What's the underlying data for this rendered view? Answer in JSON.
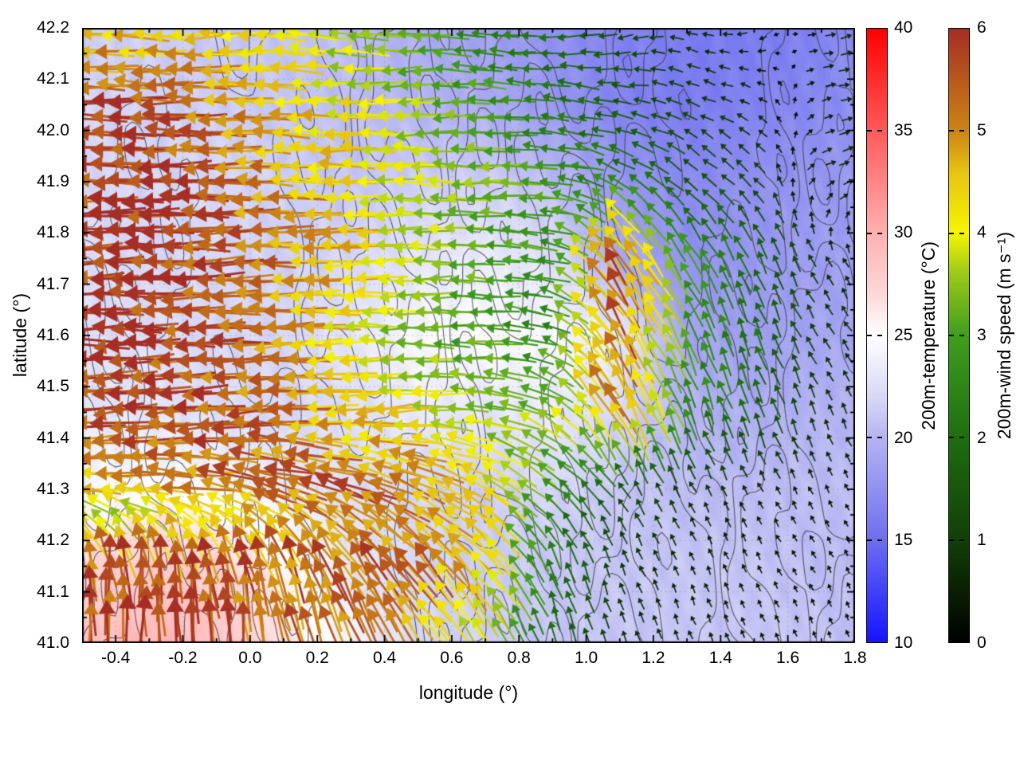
{
  "chart_data": {
    "type": "quiver_heatmap",
    "title": "",
    "xlabel": "longitude (°)",
    "ylabel": "latitude (°)",
    "xlim": [
      -0.5,
      1.8
    ],
    "ylim": [
      41.0,
      42.2
    ],
    "grid_on": true,
    "x_ticks": {
      "values": [
        -0.4,
        -0.2,
        0.0,
        0.2,
        0.4,
        0.6,
        0.8,
        1.0,
        1.2,
        1.4,
        1.6,
        1.8
      ],
      "labels": [
        "-0.4",
        "-0.2",
        "0.0",
        "0.2",
        "0.4",
        "0.6",
        "0.8",
        "1.0",
        "1.2",
        "1.4",
        "1.6",
        "1.8"
      ]
    },
    "y_ticks": {
      "values": [
        42.2,
        42.1,
        42.0,
        41.9,
        41.8,
        41.7,
        41.6,
        41.5,
        41.4,
        41.3,
        41.2,
        41.1,
        41.0
      ],
      "labels": [
        "42.2",
        "42.1",
        "42.0",
        "41.9",
        "41.8",
        "41.7",
        "41.6",
        "41.5",
        "41.4",
        "41.3",
        "41.2",
        "41.1",
        "41.0"
      ]
    },
    "grid_lons": [
      -0.5,
      -0.3,
      -0.1,
      0.1,
      0.3,
      0.5,
      0.7,
      0.9,
      1.1,
      1.3,
      1.5,
      1.7,
      1.8
    ],
    "grid_lats": [
      42.2,
      42.05,
      41.9,
      41.75,
      41.6,
      41.45,
      41.3,
      41.15,
      41.0
    ],
    "temperature_C": [
      [
        21.5,
        21.5,
        21.0,
        21.0,
        20.5,
        19.5,
        18.5,
        17.5,
        16.5,
        16.0,
        16.0,
        16.5,
        17.0
      ],
      [
        22.0,
        21.5,
        21.5,
        21.0,
        20.5,
        20.0,
        19.5,
        18.0,
        16.5,
        16.0,
        16.5,
        17.0,
        17.5
      ],
      [
        22.0,
        22.0,
        22.0,
        21.5,
        21.0,
        21.5,
        21.5,
        20.5,
        18.0,
        17.0,
        17.5,
        18.0,
        18.0
      ],
      [
        22.5,
        22.0,
        22.0,
        21.5,
        22.0,
        23.0,
        23.5,
        22.5,
        19.5,
        17.5,
        18.0,
        18.5,
        18.5
      ],
      [
        22.5,
        22.5,
        22.0,
        22.0,
        23.0,
        24.5,
        25.0,
        24.5,
        23.5,
        19.0,
        18.5,
        19.0,
        19.0
      ],
      [
        23.0,
        23.0,
        22.5,
        22.0,
        22.5,
        23.5,
        23.0,
        23.5,
        22.0,
        20.0,
        19.5,
        20.0,
        20.0
      ],
      [
        24.5,
        25.0,
        24.5,
        23.5,
        22.5,
        22.0,
        21.5,
        22.0,
        21.0,
        20.5,
        20.5,
        20.5,
        20.5
      ],
      [
        27.0,
        28.0,
        27.5,
        25.5,
        23.0,
        22.0,
        21.5,
        21.0,
        21.0,
        21.0,
        21.0,
        20.5,
        20.5
      ],
      [
        28.5,
        29.5,
        28.5,
        26.5,
        24.0,
        22.0,
        21.5,
        21.0,
        21.0,
        21.0,
        21.0,
        21.0,
        20.5
      ]
    ],
    "wind_uv": [
      [
        [
          -4.5,
          0.3
        ],
        [
          -4.2,
          0.2
        ],
        [
          -4.5,
          -0.3
        ],
        [
          -4.0,
          0.3
        ],
        [
          -3.5,
          0.2
        ],
        [
          -3.0,
          -0.2
        ],
        [
          -2.5,
          0.3
        ],
        [
          -2.0,
          -0.2
        ],
        [
          -1.2,
          -0.3
        ],
        [
          -0.8,
          0.2
        ],
        [
          -0.5,
          -0.2
        ],
        [
          0.6,
          0.1
        ],
        [
          0.8,
          0.2
        ]
      ],
      [
        [
          -5.8,
          0.2
        ],
        [
          -5.6,
          0.0
        ],
        [
          -5.2,
          0.3
        ],
        [
          -4.6,
          0.0
        ],
        [
          -4.2,
          0.2
        ],
        [
          -3.6,
          -0.3
        ],
        [
          -3.0,
          0.2
        ],
        [
          -2.2,
          0.4
        ],
        [
          -1.5,
          0.2
        ],
        [
          -1.0,
          0.4
        ],
        [
          -0.6,
          0.3
        ],
        [
          0.5,
          0.2
        ],
        [
          0.7,
          0.1
        ]
      ],
      [
        [
          -6.0,
          0.0
        ],
        [
          -5.8,
          -0.2
        ],
        [
          -5.6,
          0.0
        ],
        [
          -5.0,
          0.2
        ],
        [
          -4.4,
          0.0
        ],
        [
          -3.8,
          0.2
        ],
        [
          -3.4,
          0.0
        ],
        [
          -3.0,
          0.3
        ],
        [
          -2.0,
          1.2
        ],
        [
          -1.2,
          1.0
        ],
        [
          -0.8,
          0.8
        ],
        [
          0.5,
          0.3
        ],
        [
          0.6,
          0.2
        ]
      ],
      [
        [
          -6.0,
          -0.3
        ],
        [
          -5.9,
          0.0
        ],
        [
          -5.7,
          -0.2
        ],
        [
          -5.2,
          0.0
        ],
        [
          -4.6,
          -0.3
        ],
        [
          -3.8,
          -0.2
        ],
        [
          -3.2,
          0.2
        ],
        [
          -2.6,
          0.5
        ],
        [
          -3.0,
          4.5
        ],
        [
          -1.5,
          2.5
        ],
        [
          -0.8,
          1.8
        ],
        [
          -0.4,
          0.7
        ],
        [
          -0.3,
          0.6
        ]
      ],
      [
        [
          -6.0,
          0.0
        ],
        [
          -5.8,
          0.0
        ],
        [
          -5.6,
          -0.3
        ],
        [
          -5.0,
          -0.2
        ],
        [
          -4.2,
          0.0
        ],
        [
          -3.4,
          0.2
        ],
        [
          -3.0,
          0.0
        ],
        [
          -2.4,
          0.8
        ],
        [
          -2.8,
          4.8
        ],
        [
          -1.2,
          2.6
        ],
        [
          -0.8,
          2.0
        ],
        [
          -0.5,
          0.7
        ],
        [
          -0.4,
          0.6
        ]
      ],
      [
        [
          -5.8,
          -0.5
        ],
        [
          -5.8,
          -0.3
        ],
        [
          -5.6,
          -0.4
        ],
        [
          -5.2,
          -0.3
        ],
        [
          -4.6,
          -0.4
        ],
        [
          -4.2,
          -0.2
        ],
        [
          -3.6,
          0.3
        ],
        [
          -3.0,
          2.0
        ],
        [
          -2.4,
          4.6
        ],
        [
          -1.0,
          2.6
        ],
        [
          -0.6,
          1.6
        ],
        [
          -0.3,
          0.8
        ],
        [
          -0.3,
          0.6
        ]
      ],
      [
        [
          -4.4,
          0.3
        ],
        [
          -4.6,
          0.4
        ],
        [
          -5.0,
          0.8
        ],
        [
          -5.2,
          1.5
        ],
        [
          -5.0,
          1.8
        ],
        [
          -4.6,
          2.0
        ],
        [
          -4.0,
          2.2
        ],
        [
          -2.2,
          1.8
        ],
        [
          -0.8,
          1.2
        ],
        [
          -0.4,
          0.7
        ],
        [
          -0.3,
          0.5
        ],
        [
          -0.2,
          0.4
        ],
        [
          -0.2,
          0.3
        ]
      ],
      [
        [
          -0.5,
          5.5
        ],
        [
          -0.3,
          5.8
        ],
        [
          -0.8,
          5.5
        ],
        [
          -1.5,
          5.2
        ],
        [
          -2.5,
          4.8
        ],
        [
          -3.2,
          4.2
        ],
        [
          -2.8,
          3.6
        ],
        [
          -0.8,
          2.2
        ],
        [
          -0.3,
          0.8
        ],
        [
          -0.2,
          0.5
        ],
        [
          -0.2,
          0.4
        ],
        [
          -0.2,
          0.3
        ],
        [
          -0.1,
          0.3
        ]
      ],
      [
        [
          0.5,
          5.5
        ],
        [
          0.2,
          6.0
        ],
        [
          -0.5,
          5.6
        ],
        [
          -1.0,
          5.2
        ],
        [
          -2.0,
          4.8
        ],
        [
          -2.8,
          4.0
        ],
        [
          -2.2,
          3.0
        ],
        [
          -0.6,
          1.8
        ],
        [
          -0.3,
          0.7
        ],
        [
          -0.2,
          0.5
        ],
        [
          -0.2,
          0.4
        ],
        [
          -0.1,
          0.3
        ],
        [
          -0.1,
          0.3
        ]
      ]
    ],
    "colorbars": {
      "temperature": {
        "title": "200m-temperature (°C)",
        "range": [
          10,
          40
        ],
        "ticks": {
          "values": [
            40,
            35,
            30,
            25,
            20,
            15,
            10
          ],
          "labels": [
            "40",
            "35",
            "30",
            "25",
            "20",
            "15",
            "10"
          ]
        },
        "stops": [
          [
            10,
            "#1414ff"
          ],
          [
            15,
            "#6e6ef0"
          ],
          [
            20,
            "#b4b4f2"
          ],
          [
            22,
            "#d8d8f7"
          ],
          [
            25,
            "#ffffff"
          ],
          [
            27,
            "#ffd8d8"
          ],
          [
            30,
            "#ffb0b0"
          ],
          [
            35,
            "#ff5a5a"
          ],
          [
            40,
            "#ff0000"
          ]
        ]
      },
      "wind": {
        "title": "200m-wind speed (m s⁻¹)",
        "range": [
          0,
          6
        ],
        "ticks": {
          "values": [
            6,
            5,
            4,
            3,
            2,
            1,
            0
          ],
          "labels": [
            "6",
            "5",
            "4",
            "3",
            "2",
            "1",
            "0"
          ]
        },
        "stops": [
          [
            0,
            "#000000"
          ],
          [
            1,
            "#123f08"
          ],
          [
            2,
            "#1e6e10"
          ],
          [
            3,
            "#3f9e1e"
          ],
          [
            3.6,
            "#9cc818"
          ],
          [
            4,
            "#f5f500"
          ],
          [
            4.6,
            "#e6c312"
          ],
          [
            5,
            "#cc8414"
          ],
          [
            6,
            "#a62d24"
          ]
        ]
      }
    },
    "contour_color": "#3c3c42",
    "grid_line_color": "#999999",
    "plot_border_color": "#000000"
  }
}
